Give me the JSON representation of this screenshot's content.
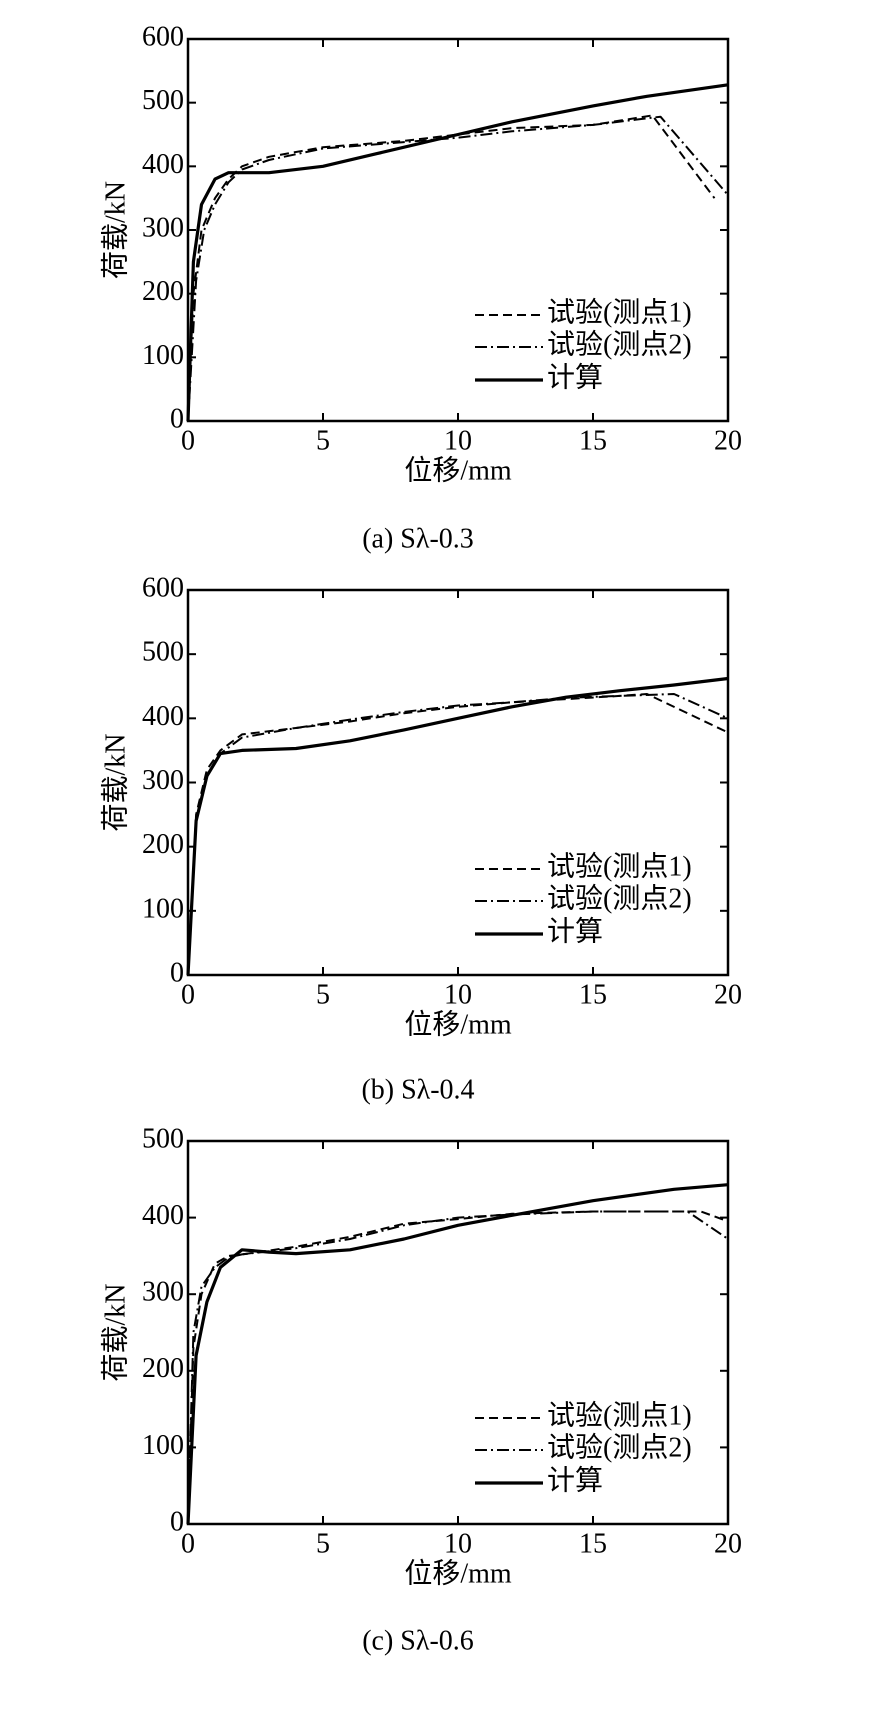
{
  "chart_data": [
    {
      "type": "line",
      "caption": "(a) Sλ-0.3",
      "xlabel": "位移/mm",
      "ylabel": "荷载/kN",
      "xlim": [
        0,
        20
      ],
      "xticks": [
        0,
        5,
        10,
        15,
        20
      ],
      "ylim": [
        0,
        600
      ],
      "yticks": [
        0,
        100,
        200,
        300,
        400,
        500,
        600
      ],
      "legend": "lower right",
      "series": [
        {
          "name": "试验(测点1)",
          "color": "#000000",
          "style": "dashed",
          "x": [
            0,
            0.2,
            0.5,
            1,
            1.5,
            2,
            3,
            5,
            8,
            10,
            12,
            15,
            17.2,
            19.5
          ],
          "values": [
            0,
            200,
            300,
            350,
            380,
            400,
            415,
            430,
            440,
            450,
            460,
            465,
            480,
            350
          ]
        },
        {
          "name": "试验(测点2)",
          "color": "#000000",
          "style": "dashdot",
          "x": [
            0,
            0.3,
            0.6,
            1,
            1.5,
            2,
            3,
            5,
            8,
            10,
            12,
            15,
            17.5,
            20
          ],
          "values": [
            0,
            220,
            300,
            340,
            375,
            395,
            410,
            428,
            438,
            445,
            455,
            465,
            478,
            355
          ]
        },
        {
          "name": "计算",
          "color": "#000000",
          "style": "solid",
          "x": [
            0,
            0.2,
            0.5,
            1,
            1.5,
            2,
            3,
            5,
            7,
            10,
            12,
            15,
            17,
            20
          ],
          "values": [
            0,
            250,
            340,
            380,
            390,
            390,
            390,
            400,
            420,
            450,
            470,
            495,
            510,
            528
          ]
        }
      ]
    },
    {
      "type": "line",
      "caption": "(b) Sλ-0.4",
      "xlabel": "位移/mm",
      "ylabel": "荷载/kN",
      "xlim": [
        0,
        20
      ],
      "xticks": [
        0,
        5,
        10,
        15,
        20
      ],
      "ylim": [
        0,
        600
      ],
      "yticks": [
        0,
        100,
        200,
        300,
        400,
        500,
        600
      ],
      "legend": "lower right",
      "series": [
        {
          "name": "试验(测点1)",
          "color": "#000000",
          "style": "dashed",
          "x": [
            0,
            0.3,
            0.7,
            1.2,
            2,
            4,
            6,
            8,
            10,
            12,
            14,
            16,
            17,
            20
          ],
          "values": [
            0,
            250,
            320,
            350,
            375,
            385,
            395,
            408,
            418,
            425,
            430,
            435,
            438,
            378
          ]
        },
        {
          "name": "试验(测点2)",
          "color": "#000000",
          "style": "dashdot",
          "x": [
            0,
            0.3,
            0.7,
            1.2,
            2,
            4,
            6,
            8,
            10,
            12,
            14,
            16,
            18,
            20
          ],
          "values": [
            0,
            240,
            310,
            345,
            370,
            385,
            398,
            410,
            420,
            425,
            432,
            435,
            438,
            400
          ]
        },
        {
          "name": "计算",
          "color": "#000000",
          "style": "solid",
          "x": [
            0,
            0.3,
            0.7,
            1.2,
            2,
            4,
            6,
            8,
            10,
            12,
            14,
            16,
            18,
            20
          ],
          "values": [
            0,
            240,
            310,
            345,
            350,
            353,
            365,
            382,
            400,
            418,
            433,
            443,
            452,
            462
          ]
        }
      ]
    },
    {
      "type": "line",
      "caption": "(c) Sλ-0.6",
      "xlabel": "位移/mm",
      "ylabel": "荷载/kN",
      "xlim": [
        0,
        20
      ],
      "xticks": [
        0,
        5,
        10,
        15,
        20
      ],
      "ylim": [
        0,
        500
      ],
      "yticks": [
        0,
        100,
        200,
        300,
        400,
        500
      ],
      "legend": "lower right",
      "series": [
        {
          "name": "试验(测点1)",
          "color": "#000000",
          "style": "dashed",
          "x": [
            0,
            0.2,
            0.5,
            1,
            1.5,
            2,
            4,
            6,
            8,
            10,
            12,
            15,
            19,
            20
          ],
          "values": [
            0,
            230,
            300,
            340,
            350,
            352,
            362,
            375,
            392,
            398,
            405,
            408,
            408,
            395
          ]
        },
        {
          "name": "试验(测点2)",
          "color": "#000000",
          "style": "dashdot",
          "x": [
            0,
            0.2,
            0.5,
            1,
            1.5,
            2,
            4,
            6,
            8,
            10,
            12,
            15,
            18.5,
            20
          ],
          "values": [
            0,
            250,
            310,
            335,
            348,
            352,
            360,
            372,
            390,
            400,
            404,
            408,
            408,
            372
          ]
        },
        {
          "name": "计算",
          "color": "#000000",
          "style": "solid",
          "x": [
            0,
            0.3,
            0.7,
            1.2,
            2,
            3,
            4,
            6,
            8,
            10,
            12,
            15,
            18,
            20
          ],
          "values": [
            0,
            220,
            290,
            335,
            358,
            355,
            353,
            358,
            372,
            390,
            403,
            422,
            437,
            443
          ]
        }
      ]
    }
  ]
}
